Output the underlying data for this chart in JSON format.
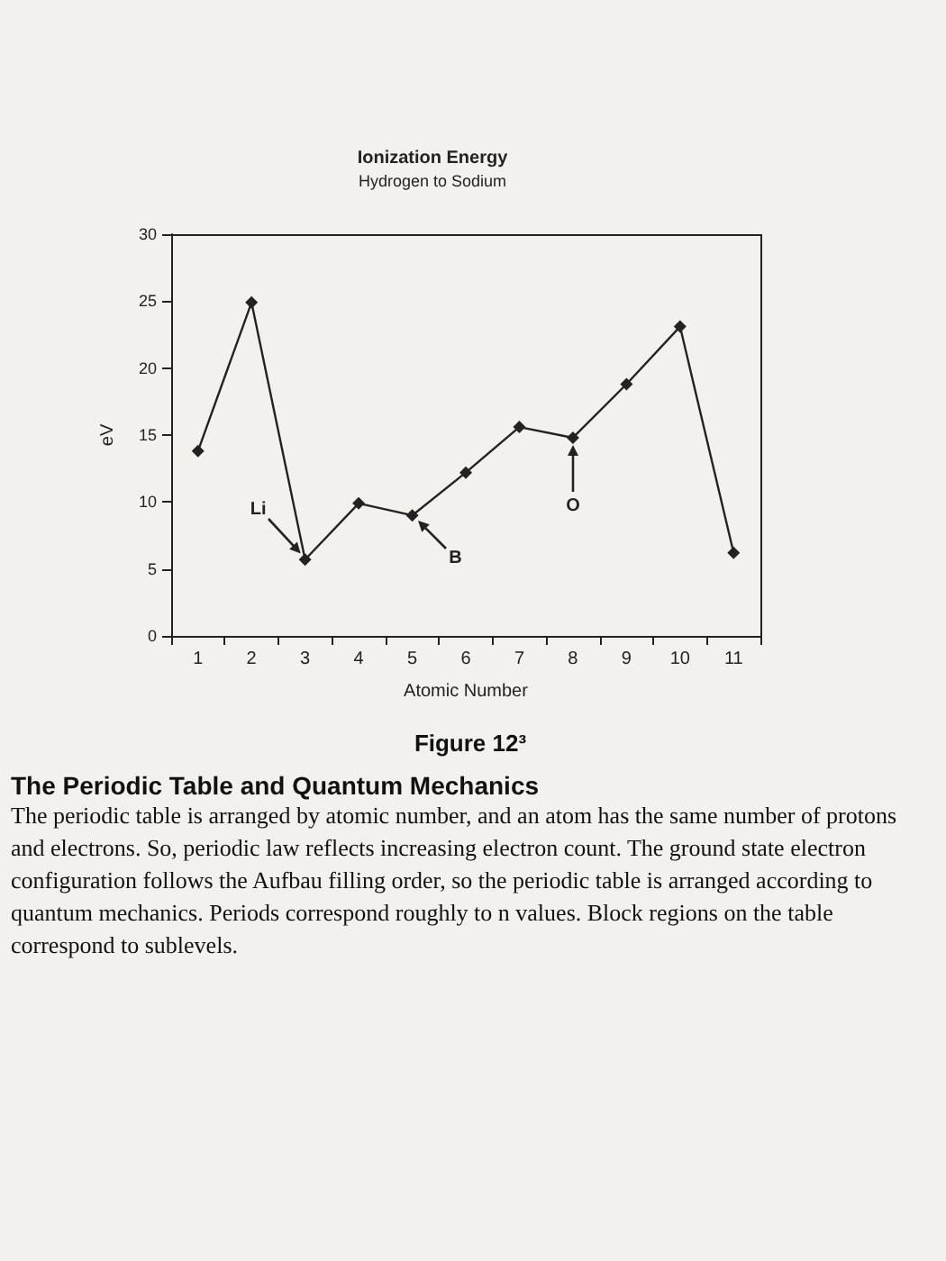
{
  "chart_data": {
    "type": "line",
    "title": "Ionization Energy",
    "subtitle": "Hydrogen to Sodium",
    "xlabel": "Atomic Number",
    "ylabel": "eV",
    "categories": [
      "1",
      "2",
      "3",
      "4",
      "5",
      "6",
      "7",
      "8",
      "9",
      "10",
      "11"
    ],
    "series": [
      {
        "color": "#222222",
        "values": [
          13.8,
          24.9,
          5.7,
          9.9,
          9.0,
          12.2,
          15.6,
          14.8,
          18.8,
          23.1,
          6.2
        ]
      }
    ],
    "ylim": [
      0,
      30
    ],
    "yticks": [
      0,
      5,
      10,
      15,
      20,
      25,
      30
    ],
    "grid": false,
    "marker": "diamond",
    "line_style": "solid",
    "annotations": [
      {
        "text": "Li",
        "x": "3",
        "y": 5.7
      },
      {
        "text": "B",
        "x": "5",
        "y": 9.0
      },
      {
        "text": "O",
        "x": "8",
        "y": 14.8
      },
      "Figure 12³",
      "The Periodic Table and Quantum Mechanics",
      "The periodic table is arranged by atomic number, and an atom has the same number of protons and electrons. So, periodic law reflects increasing electron count. The ground state electron configuration follows the Aufbau filling order, so the periodic table is arranged according to quantum mechanics. Periods correspond roughly to n values. Block regions on the table correspond to sublevels."
    ]
  }
}
